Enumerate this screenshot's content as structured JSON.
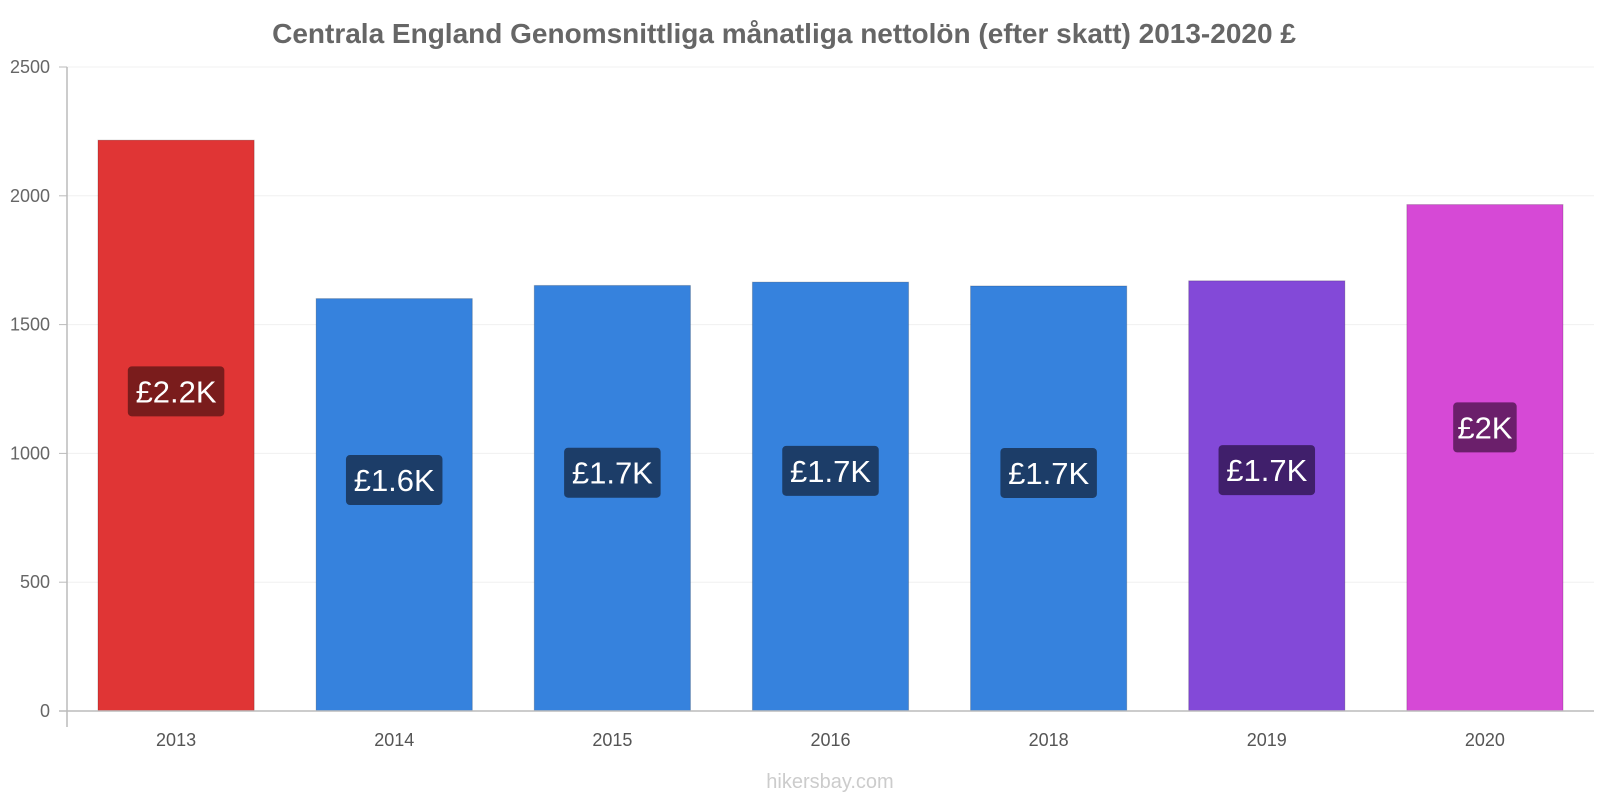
{
  "chart_data": {
    "type": "bar",
    "title": "Centrala England Genomsnittliga månatliga nettolön (efter skatt) 2013-2020 £",
    "categories": [
      "2013",
      "2014",
      "2015",
      "2016",
      "2018",
      "2019",
      "2020"
    ],
    "values": [
      2216,
      1601,
      1652,
      1665,
      1650,
      1670,
      1966
    ],
    "data_labels": [
      "£2.2K",
      "£1.6K",
      "£1.7K",
      "£1.7K",
      "£1.7K",
      "£1.7K",
      "£2K"
    ],
    "bar_colors": [
      "#e03535",
      "#3682dd",
      "#3682dd",
      "#3682dd",
      "#3682dd",
      "#8349d8",
      "#d649d6"
    ],
    "label_bg_colors": [
      "#7a1c1c",
      "#1c3d68",
      "#1c3d68",
      "#1c3d68",
      "#1c3d68",
      "#401f6b",
      "#6b1f6b"
    ],
    "y_ticks": [
      0,
      500,
      1000,
      1500,
      2000,
      2500
    ],
    "ylim": [
      0,
      2500
    ],
    "xlabel": "",
    "ylabel": "",
    "grid": true,
    "legend": "none"
  },
  "watermark": "hikersbay.com"
}
